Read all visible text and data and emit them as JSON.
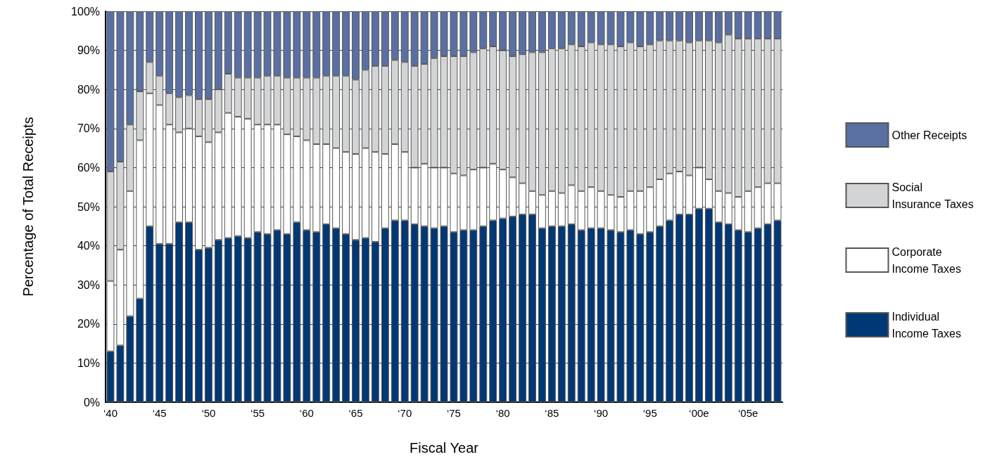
{
  "chart_data": {
    "type": "bar",
    "stacked": true,
    "xlabel": "Fiscal Year",
    "ylabel": "Percentage of Total Receipts",
    "categories": [
      "‘40",
      null,
      null,
      null,
      null,
      "‘45",
      null,
      null,
      null,
      null,
      "‘50",
      null,
      null,
      null,
      null,
      "‘55",
      null,
      null,
      null,
      null,
      "‘60",
      null,
      null,
      null,
      null,
      "‘65",
      null,
      null,
      null,
      null,
      "‘70",
      null,
      null,
      null,
      null,
      "‘75",
      null,
      null,
      null,
      null,
      "‘80",
      null,
      null,
      null,
      null,
      "‘85",
      null,
      null,
      null,
      null,
      "‘90",
      null,
      null,
      null,
      null,
      "‘95",
      null,
      null,
      null,
      null,
      "‘00e",
      null,
      null,
      null,
      null,
      "‘05e",
      null,
      null,
      null
    ],
    "series": [
      {
        "name": "Individual Income Taxes",
        "color": "#003876",
        "values": [
          13,
          14.5,
          22,
          26.5,
          45,
          40.5,
          40.5,
          46,
          46,
          39,
          39.5,
          41.5,
          42,
          42.5,
          42,
          43.5,
          43,
          44,
          43,
          46,
          44,
          43.5,
          45.5,
          44.5,
          43,
          41.5,
          42,
          41,
          44.5,
          46.5,
          46.5,
          45.5,
          45,
          44.5,
          45,
          43.5,
          44,
          44,
          45,
          46.5,
          47,
          47.5,
          48,
          48,
          44.5,
          45,
          45,
          45.5,
          44,
          44.5,
          44.5,
          44,
          43.5,
          44,
          43,
          43.5,
          45,
          46.5,
          48,
          48,
          49.5,
          49.5,
          46,
          45.5,
          44,
          43.5,
          44.5,
          45.5,
          46.5
        ]
      },
      {
        "name": "Corporate Income Taxes",
        "color": "#ffffff",
        "values": [
          18,
          24.5,
          32,
          40.5,
          34,
          35.5,
          30.5,
          23,
          24,
          29,
          27,
          27.5,
          32,
          30.5,
          30.5,
          27.5,
          28,
          27,
          25.5,
          22,
          23,
          22.5,
          20.5,
          20.5,
          21,
          22,
          23,
          23,
          19,
          19.5,
          17.5,
          14.5,
          16,
          15.5,
          15,
          15,
          14,
          15.5,
          15,
          14.5,
          12.5,
          10,
          8,
          6,
          8.5,
          9,
          8.5,
          10,
          10,
          10.5,
          9.5,
          9,
          9,
          10,
          11,
          11.5,
          12,
          12,
          11,
          10,
          10.5,
          7.5,
          8,
          8,
          8.5,
          10.5,
          10.5,
          10.5,
          9.5
        ]
      },
      {
        "name": "Social Insurance Taxes",
        "color": "#d3d4d6",
        "values": [
          28,
          22.5,
          17,
          12.5,
          8,
          7.5,
          8,
          9,
          8.5,
          9.5,
          11,
          11,
          10,
          10,
          10.5,
          12,
          12.5,
          12.5,
          14.5,
          15,
          16,
          17,
          17.5,
          18.5,
          19.5,
          19,
          20,
          22,
          22.5,
          21.5,
          23,
          26,
          25.5,
          28,
          28.5,
          30,
          30.5,
          30,
          30.5,
          30,
          30.5,
          31,
          33,
          35.5,
          36.5,
          36.5,
          37,
          36,
          37,
          37,
          37.5,
          38.5,
          38.5,
          38,
          37,
          36.5,
          35.5,
          34,
          33.5,
          34,
          32.5,
          35.5,
          38,
          40.5,
          40.5,
          39,
          38,
          37,
          37
        ]
      },
      {
        "name": "Other Receipts",
        "color": "#5a70a3",
        "values": [
          41,
          38.5,
          29,
          20.5,
          13,
          16.5,
          21,
          22,
          21.5,
          22.5,
          22.5,
          20,
          16,
          17,
          17,
          17,
          16.5,
          16.5,
          17,
          17,
          17,
          17,
          16.5,
          16.5,
          16.5,
          17.5,
          15,
          14,
          14,
          12.5,
          13,
          14,
          13.5,
          12,
          11.5,
          11.5,
          11.5,
          10.5,
          9.5,
          9,
          10,
          11.5,
          11,
          10.5,
          10.5,
          9.5,
          9.5,
          8.5,
          9,
          8,
          8.5,
          8.5,
          9,
          8,
          9,
          8.5,
          7.5,
          7.5,
          7.5,
          8,
          7.5,
          7.5,
          8,
          6,
          7,
          7,
          7,
          7,
          7
        ]
      }
    ],
    "ylim": [
      0,
      100
    ],
    "yticks": [
      {
        "value": 0,
        "label": "0%"
      },
      {
        "value": 10,
        "label": "10%"
      },
      {
        "value": 20,
        "label": "20%"
      },
      {
        "value": 30,
        "label": "30%"
      },
      {
        "value": 40,
        "label": "40%"
      },
      {
        "value": 50,
        "label": "50%"
      },
      {
        "value": 60,
        "label": "60%"
      },
      {
        "value": 70,
        "label": "70%"
      },
      {
        "value": 80,
        "label": "80%"
      },
      {
        "value": 90,
        "label": "90%"
      },
      {
        "value": 100,
        "label": "100%"
      }
    ],
    "grid": "y",
    "legend": "right"
  }
}
